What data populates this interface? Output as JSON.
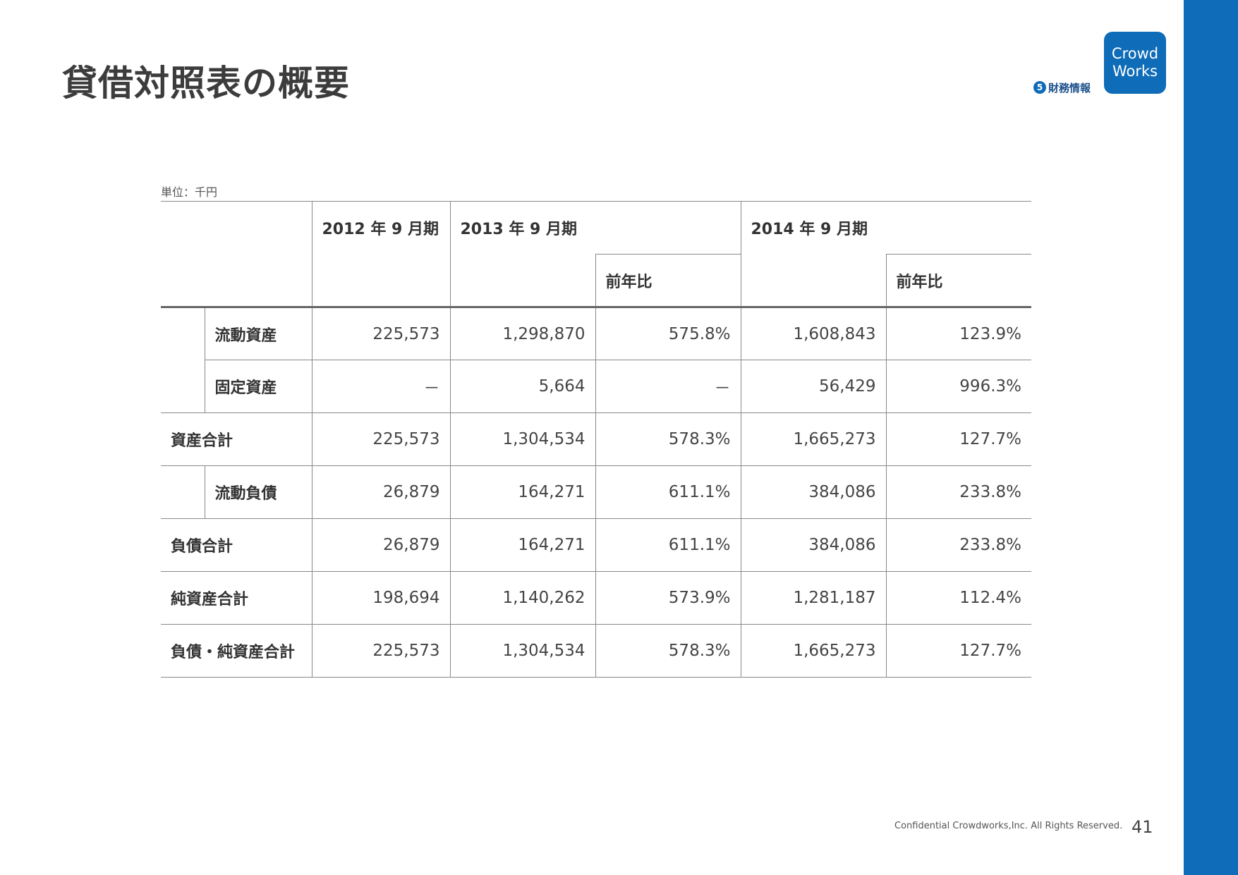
{
  "page": {
    "title": "貸借対照表の概要",
    "section_number": "5",
    "section_label": "財務情報",
    "logo_line1": "Crowd",
    "logo_line2": "Works",
    "unit_label": "単位：千円",
    "footer": "Confidential Crowdworks,Inc. All Rights Reserved.",
    "page_number": "41"
  },
  "colors": {
    "brand_blue": "#0e6cb8",
    "text": "#333333",
    "rule": "#888888"
  },
  "table": {
    "headers": {
      "fy2012": "2012 年 9 月期",
      "fy2013": "2013 年 9 月期",
      "fy2014": "2014 年 9 月期",
      "yoy_2013": "前年比",
      "yoy_2014": "前年比"
    },
    "rows": [
      {
        "label": "流動資産",
        "fy2012": "225,573",
        "fy2013": "1,298,870",
        "yoy2013": "575.8%",
        "fy2014": "1,608,843",
        "yoy2014": "123.9%"
      },
      {
        "label": "固定資産",
        "fy2012": "－",
        "fy2013": "5,664",
        "yoy2013": "－",
        "fy2014": "56,429",
        "yoy2014": "996.3%"
      },
      {
        "label": "資産合計",
        "fy2012": "225,573",
        "fy2013": "1,304,534",
        "yoy2013": "578.3%",
        "fy2014": "1,665,273",
        "yoy2014": "127.7%"
      },
      {
        "label": "流動負債",
        "fy2012": "26,879",
        "fy2013": "164,271",
        "yoy2013": "611.1%",
        "fy2014": "384,086",
        "yoy2014": "233.8%"
      },
      {
        "label": "負債合計",
        "fy2012": "26,879",
        "fy2013": "164,271",
        "yoy2013": "611.1%",
        "fy2014": "384,086",
        "yoy2014": "233.8%"
      },
      {
        "label": "純資産合計",
        "fy2012": "198,694",
        "fy2013": "1,140,262",
        "yoy2013": "573.9%",
        "fy2014": "1,281,187",
        "yoy2014": "112.4%"
      },
      {
        "label": "負債・純資産合計",
        "fy2012": "225,573",
        "fy2013": "1,304,534",
        "yoy2013": "578.3%",
        "fy2014": "1,665,273",
        "yoy2014": "127.7%"
      }
    ]
  }
}
